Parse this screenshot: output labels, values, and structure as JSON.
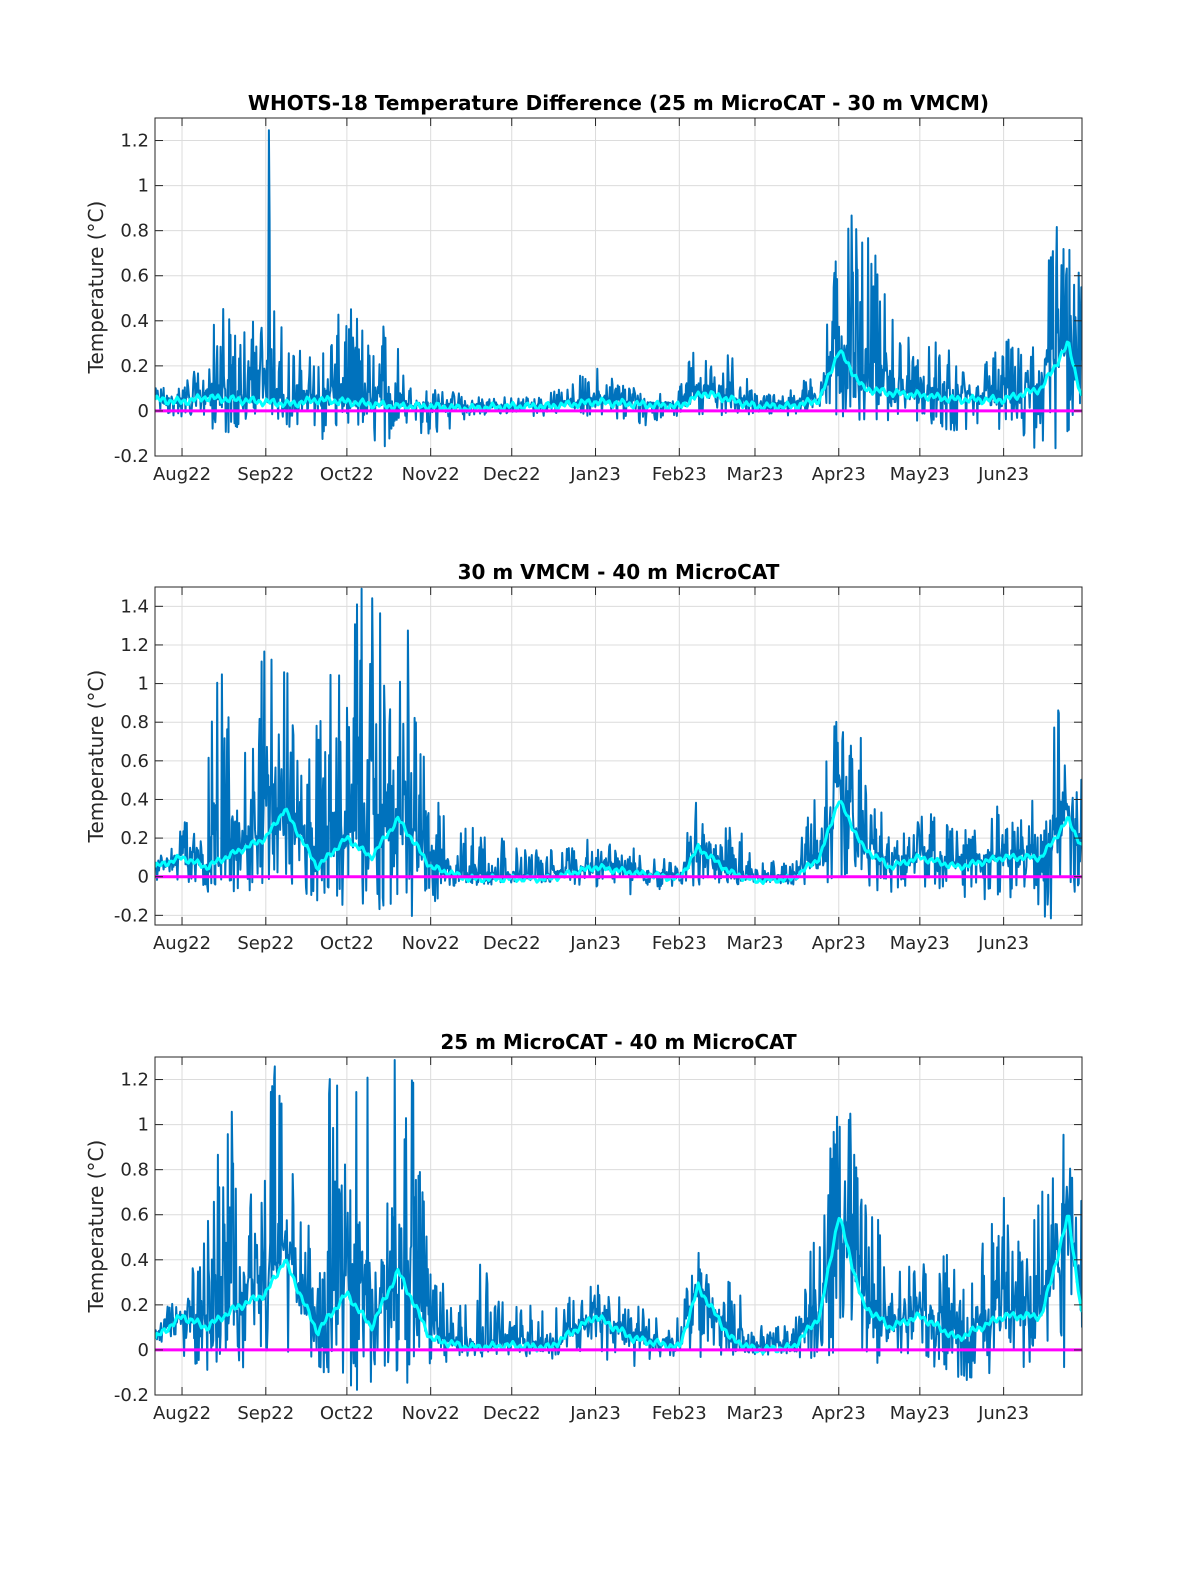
{
  "chart_data": [
    {
      "type": "line",
      "title": "WHOTS-18 Temperature Difference (25 m MicroCAT - 30 m VMCM)",
      "ylabel": "Temperature (°C)",
      "xlabel": "",
      "x_range": [
        "2022-07-22",
        "2023-06-30"
      ],
      "ylim": [
        -0.2,
        1.3
      ],
      "yticks": [
        -0.2,
        0,
        0.2,
        0.4,
        0.6,
        0.8,
        1,
        1.2
      ],
      "ytick_labels": [
        "-0.2",
        "0",
        "0.2",
        "0.4",
        "0.6",
        "0.8",
        "1",
        "1.2"
      ],
      "xticks": [
        "2022-08-01",
        "2022-09-01",
        "2022-10-01",
        "2022-11-01",
        "2022-12-01",
        "2023-01-01",
        "2023-02-01",
        "2023-03-01",
        "2023-04-01",
        "2023-05-01",
        "2023-06-01"
      ],
      "xtick_labels": [
        "Aug22",
        "Sep22",
        "Oct22",
        "Nov22",
        "Dec22",
        "Jan23",
        "Feb23",
        "Mar23",
        "Apr23",
        "May23",
        "Jun23"
      ],
      "grid": true,
      "series": [
        {
          "role": "raw",
          "color": "#0072bd",
          "envelope": {
            "x": [
              "2022-07-22",
              "2022-08-01",
              "2022-08-10",
              "2022-08-15",
              "2022-08-20",
              "2022-09-01",
              "2022-09-02",
              "2022-09-10",
              "2022-09-20",
              "2022-10-01",
              "2022-10-10",
              "2022-10-15",
              "2022-10-25",
              "2022-11-01",
              "2022-11-15",
              "2022-12-01",
              "2022-12-15",
              "2023-01-01",
              "2023-01-10",
              "2023-01-20",
              "2023-02-01",
              "2023-02-08",
              "2023-02-15",
              "2023-02-20",
              "2023-03-01",
              "2023-03-15",
              "2023-03-25",
              "2023-04-01",
              "2023-04-10",
              "2023-04-20",
              "2023-05-01",
              "2023-05-10",
              "2023-05-20",
              "2023-06-01",
              "2023-06-10",
              "2023-06-20",
              "2023-06-30"
            ],
            "upper": [
              0.1,
              0.15,
              0.2,
              0.55,
              0.35,
              0.5,
              1.3,
              0.3,
              0.25,
              0.5,
              0.35,
              0.5,
              0.1,
              0.1,
              0.08,
              0.06,
              0.08,
              0.2,
              0.15,
              0.08,
              0.1,
              0.35,
              0.15,
              0.3,
              0.08,
              0.1,
              0.2,
              0.9,
              0.85,
              0.5,
              0.25,
              0.35,
              0.15,
              0.35,
              0.25,
              0.9,
              0.6
            ],
            "lower": [
              -0.02,
              -0.03,
              -0.05,
              -0.12,
              -0.1,
              -0.05,
              -0.02,
              -0.08,
              -0.15,
              -0.05,
              -0.12,
              -0.2,
              -0.05,
              -0.2,
              -0.02,
              -0.02,
              -0.03,
              -0.02,
              -0.05,
              -0.08,
              -0.02,
              -0.02,
              -0.03,
              -0.02,
              -0.02,
              -0.02,
              -0.02,
              -0.02,
              -0.05,
              -0.05,
              -0.05,
              -0.08,
              -0.12,
              -0.08,
              -0.18,
              -0.2,
              -0.02
            ]
          }
        },
        {
          "role": "smoothed",
          "color": "#00ffff",
          "x": [
            "2022-07-22",
            "2022-08-01",
            "2022-08-10",
            "2022-08-20",
            "2022-09-01",
            "2022-09-10",
            "2022-09-20",
            "2022-10-01",
            "2022-10-10",
            "2022-10-20",
            "2022-11-01",
            "2022-11-15",
            "2022-12-01",
            "2022-12-15",
            "2023-01-01",
            "2023-01-15",
            "2023-02-01",
            "2023-02-10",
            "2023-02-20",
            "2023-03-01",
            "2023-03-15",
            "2023-03-25",
            "2023-04-01",
            "2023-04-10",
            "2023-04-20",
            "2023-05-01",
            "2023-05-15",
            "2023-06-01",
            "2023-06-15",
            "2023-06-25",
            "2023-06-30"
          ],
          "y": [
            0.05,
            0.04,
            0.06,
            0.05,
            0.04,
            0.03,
            0.05,
            0.04,
            0.03,
            0.02,
            0.02,
            0.01,
            0.02,
            0.02,
            0.04,
            0.03,
            0.02,
            0.08,
            0.05,
            0.02,
            0.02,
            0.05,
            0.27,
            0.1,
            0.08,
            0.07,
            0.05,
            0.05,
            0.1,
            0.3,
            0.05
          ]
        },
        {
          "role": "zero",
          "color": "#ff00ff",
          "x": [
            "2022-07-22",
            "2023-06-30"
          ],
          "y": [
            0,
            0
          ]
        }
      ]
    },
    {
      "type": "line",
      "title": "30 m VMCM - 40 m MicroCAT",
      "ylabel": "Temperature (°C)",
      "xlabel": "",
      "x_range": [
        "2022-07-22",
        "2023-06-30"
      ],
      "ylim": [
        -0.25,
        1.5
      ],
      "yticks": [
        -0.2,
        0,
        0.2,
        0.4,
        0.6,
        0.8,
        1,
        1.2,
        1.4
      ],
      "ytick_labels": [
        "-0.2",
        "0",
        "0.2",
        "0.4",
        "0.6",
        "0.8",
        "1",
        "1.2",
        "1.4"
      ],
      "xticks": [
        "2022-08-01",
        "2022-09-01",
        "2022-10-01",
        "2022-11-01",
        "2022-12-01",
        "2023-01-01",
        "2023-02-01",
        "2023-03-01",
        "2023-04-01",
        "2023-05-01",
        "2023-06-01"
      ],
      "xtick_labels": [
        "Aug22",
        "Sep22",
        "Oct22",
        "Nov22",
        "Dec22",
        "Jan23",
        "Feb23",
        "Mar23",
        "Apr23",
        "May23",
        "Jun23"
      ],
      "grid": true,
      "series": [
        {
          "role": "raw",
          "color": "#0072bd",
          "envelope": {
            "x": [
              "2022-07-22",
              "2022-08-01",
              "2022-08-10",
              "2022-08-15",
              "2022-08-25",
              "2022-09-01",
              "2022-09-05",
              "2022-09-15",
              "2022-09-25",
              "2022-10-01",
              "2022-10-05",
              "2022-10-15",
              "2022-10-20",
              "2022-10-25",
              "2022-11-01",
              "2022-11-10",
              "2022-11-20",
              "2022-12-01",
              "2022-12-15",
              "2023-01-01",
              "2023-01-15",
              "2023-02-01",
              "2023-02-08",
              "2023-02-15",
              "2023-02-20",
              "2023-03-01",
              "2023-03-15",
              "2023-03-25",
              "2023-04-01",
              "2023-04-10",
              "2023-04-20",
              "2023-05-01",
              "2023-05-10",
              "2023-05-20",
              "2023-06-01",
              "2023-06-10",
              "2023-06-20",
              "2023-06-30"
            ],
            "upper": [
              0.1,
              0.25,
              0.55,
              1.25,
              0.6,
              1.5,
              1.5,
              0.5,
              1.3,
              0.9,
              1.5,
              1.5,
              1.5,
              1.2,
              0.5,
              0.2,
              0.4,
              0.15,
              0.15,
              0.2,
              0.15,
              0.1,
              0.45,
              0.15,
              0.35,
              0.08,
              0.1,
              0.5,
              0.9,
              0.75,
              0.25,
              0.35,
              0.3,
              0.25,
              0.4,
              0.3,
              0.95,
              0.5
            ],
            "lower": [
              -0.03,
              -0.05,
              -0.1,
              -0.12,
              -0.08,
              -0.05,
              -0.1,
              -0.15,
              -0.1,
              -0.2,
              -0.25,
              -0.15,
              -0.2,
              -0.25,
              -0.15,
              -0.05,
              -0.05,
              -0.03,
              -0.04,
              -0.05,
              -0.1,
              -0.05,
              -0.05,
              -0.05,
              -0.05,
              -0.03,
              -0.04,
              -0.05,
              -0.05,
              -0.06,
              -0.08,
              -0.05,
              -0.1,
              -0.15,
              -0.08,
              -0.2,
              -0.25,
              -0.05
            ]
          }
        },
        {
          "role": "smoothed",
          "color": "#00ffff",
          "x": [
            "2022-07-22",
            "2022-08-01",
            "2022-08-10",
            "2022-08-20",
            "2022-09-01",
            "2022-09-08",
            "2022-09-20",
            "2022-10-01",
            "2022-10-10",
            "2022-10-20",
            "2022-11-01",
            "2022-11-15",
            "2022-12-01",
            "2022-12-15",
            "2023-01-01",
            "2023-01-15",
            "2023-02-01",
            "2023-02-08",
            "2023-02-20",
            "2023-03-01",
            "2023-03-15",
            "2023-03-25",
            "2023-04-01",
            "2023-04-10",
            "2023-04-20",
            "2023-05-01",
            "2023-05-15",
            "2023-06-01",
            "2023-06-15",
            "2023-06-25",
            "2023-06-30"
          ],
          "y": [
            0.05,
            0.1,
            0.05,
            0.12,
            0.2,
            0.35,
            0.05,
            0.2,
            0.1,
            0.3,
            0.05,
            -0.01,
            -0.01,
            -0.01,
            0.05,
            0.02,
            -0.01,
            0.15,
            0.02,
            -0.02,
            -0.01,
            0.1,
            0.4,
            0.15,
            0.05,
            0.1,
            0.05,
            0.1,
            0.1,
            0.3,
            0.15
          ]
        },
        {
          "role": "zero",
          "color": "#ff00ff",
          "x": [
            "2022-07-22",
            "2023-06-30"
          ],
          "y": [
            0,
            0
          ]
        }
      ]
    },
    {
      "type": "line",
      "title": "25 m MicroCAT - 40 m MicroCAT",
      "ylabel": "Temperature (°C)",
      "xlabel": "",
      "x_range": [
        "2022-07-22",
        "2023-06-30"
      ],
      "ylim": [
        -0.2,
        1.3
      ],
      "yticks": [
        -0.2,
        0,
        0.2,
        0.4,
        0.6,
        0.8,
        1,
        1.2
      ],
      "ytick_labels": [
        "-0.2",
        "0",
        "0.2",
        "0.4",
        "0.6",
        "0.8",
        "1",
        "1.2"
      ],
      "xticks": [
        "2022-08-01",
        "2022-09-01",
        "2022-10-01",
        "2022-11-01",
        "2022-12-01",
        "2023-01-01",
        "2023-02-01",
        "2023-03-01",
        "2023-04-01",
        "2023-05-01",
        "2023-06-01"
      ],
      "xtick_labels": [
        "Aug22",
        "Sep22",
        "Oct22",
        "Nov22",
        "Dec22",
        "Jan23",
        "Feb23",
        "Mar23",
        "Apr23",
        "May23",
        "Jun23"
      ],
      "grid": true,
      "series": [
        {
          "role": "raw",
          "color": "#0072bd",
          "envelope": {
            "x": [
              "2022-07-22",
              "2022-08-01",
              "2022-08-10",
              "2022-08-15",
              "2022-08-25",
              "2022-09-01",
              "2022-09-05",
              "2022-09-15",
              "2022-09-25",
              "2022-10-01",
              "2022-10-05",
              "2022-10-15",
              "2022-10-20",
              "2022-10-25",
              "2022-11-01",
              "2022-11-10",
              "2022-11-20",
              "2022-12-01",
              "2022-12-15",
              "2023-01-01",
              "2023-01-15",
              "2023-02-01",
              "2023-02-08",
              "2023-02-15",
              "2023-02-20",
              "2023-03-01",
              "2023-03-15",
              "2023-03-25",
              "2023-04-01",
              "2023-04-10",
              "2023-04-20",
              "2023-05-01",
              "2023-05-10",
              "2023-05-20",
              "2023-06-01",
              "2023-06-10",
              "2023-06-20",
              "2023-06-30"
            ],
            "upper": [
              0.1,
              0.3,
              0.5,
              1.3,
              0.8,
              1.3,
              1.3,
              0.5,
              1.3,
              1.0,
              1.3,
              1.3,
              1.3,
              1.3,
              0.5,
              0.25,
              0.5,
              0.2,
              0.2,
              0.3,
              0.2,
              0.15,
              0.5,
              0.2,
              0.4,
              0.1,
              0.15,
              0.6,
              1.15,
              0.95,
              0.35,
              0.4,
              0.45,
              0.35,
              0.7,
              0.4,
              1.15,
              0.7
            ],
            "lower": [
              -0.02,
              -0.05,
              -0.1,
              -0.1,
              -0.08,
              -0.05,
              -0.08,
              -0.15,
              -0.1,
              -0.15,
              -0.2,
              -0.1,
              -0.15,
              -0.2,
              -0.1,
              -0.03,
              -0.03,
              -0.03,
              -0.04,
              -0.05,
              -0.08,
              -0.05,
              -0.03,
              -0.04,
              -0.03,
              -0.02,
              -0.03,
              -0.05,
              -0.05,
              -0.05,
              -0.08,
              -0.05,
              -0.1,
              -0.15,
              -0.08,
              -0.08,
              -0.1,
              -0.05
            ]
          }
        },
        {
          "role": "smoothed",
          "color": "#00ffff",
          "x": [
            "2022-07-22",
            "2022-08-01",
            "2022-08-10",
            "2022-08-20",
            "2022-09-01",
            "2022-09-08",
            "2022-09-20",
            "2022-10-01",
            "2022-10-10",
            "2022-10-20",
            "2022-11-01",
            "2022-11-15",
            "2022-12-01",
            "2022-12-15",
            "2023-01-01",
            "2023-01-15",
            "2023-02-01",
            "2023-02-08",
            "2023-02-20",
            "2023-03-01",
            "2023-03-15",
            "2023-03-25",
            "2023-04-01",
            "2023-04-10",
            "2023-04-20",
            "2023-05-01",
            "2023-05-15",
            "2023-06-01",
            "2023-06-15",
            "2023-06-25",
            "2023-06-30"
          ],
          "y": [
            0.05,
            0.15,
            0.1,
            0.18,
            0.25,
            0.4,
            0.08,
            0.25,
            0.1,
            0.35,
            0.05,
            0.01,
            0.02,
            0.01,
            0.15,
            0.05,
            0.01,
            0.28,
            0.05,
            0.0,
            0.01,
            0.15,
            0.6,
            0.2,
            0.1,
            0.15,
            0.05,
            0.15,
            0.15,
            0.6,
            0.15
          ]
        },
        {
          "role": "zero",
          "color": "#ff00ff",
          "x": [
            "2022-07-22",
            "2023-06-30"
          ],
          "y": [
            0,
            0
          ]
        }
      ]
    }
  ]
}
